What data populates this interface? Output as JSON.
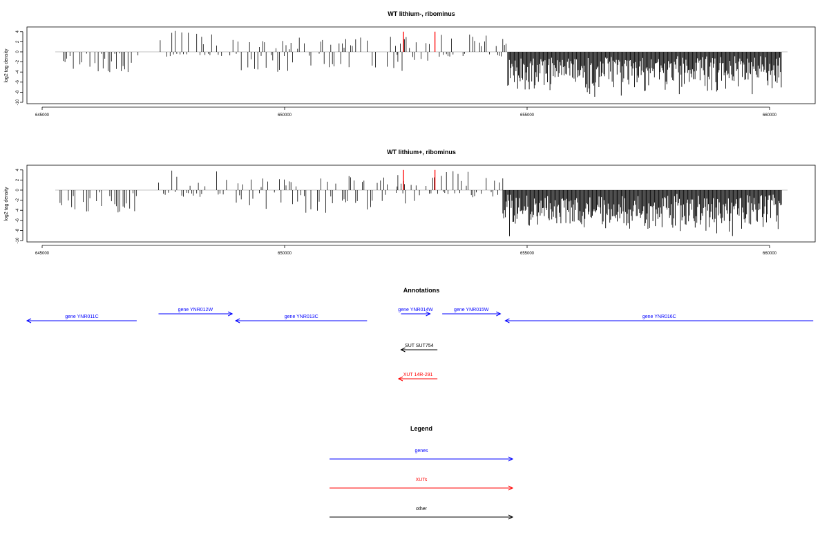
{
  "chart_data": [
    {
      "type": "bar",
      "title": "WT lithium-, ribominus",
      "ylabel": "log2 tag density",
      "xlabel": "",
      "xlim": [
        645000,
        660300
      ],
      "ylim": [
        -10,
        5
      ],
      "x_ticks": [
        "645000",
        "650000",
        "655000",
        "660000"
      ],
      "y_ticks": [
        "-10",
        "-8",
        "-6",
        "-4",
        "-2",
        "0",
        "2",
        "4"
      ],
      "grid": false,
      "series": [
        {
          "color": "#000000",
          "segments": [
            {
              "x": [
                645300,
                647000
              ],
              "min": -4,
              "max": 1
            },
            {
              "x": [
                647400,
                648900
              ],
              "min": -1,
              "max": 4.3
            },
            {
              "x": [
                648900,
                652500
              ],
              "min": -4,
              "max": 3
            },
            {
              "x": [
                652300,
                653200
              ],
              "min": -2,
              "max": 3
            },
            {
              "x": [
                653200,
                654600
              ],
              "min": -1,
              "max": 3.8
            },
            {
              "x": [
                654600,
                660250
              ],
              "min": -9,
              "max": 0
            }
          ]
        }
      ],
      "markers": [
        {
          "x": 652450,
          "color": "#ff0000"
        },
        {
          "x": 653100,
          "color": "#ff0000"
        }
      ]
    },
    {
      "type": "bar",
      "title": "WT lithium+, ribominus",
      "ylabel": "log2 tag density",
      "xlabel": "",
      "xlim": [
        645000,
        660300
      ],
      "ylim": [
        -10,
        5
      ],
      "x_ticks": [
        "645000",
        "650000",
        "655000",
        "660000"
      ],
      "y_ticks": [
        "-10",
        "-8",
        "-6",
        "-4",
        "-2",
        "0",
        "2",
        "4"
      ],
      "grid": false,
      "series": [
        {
          "color": "#000000",
          "segments": [
            {
              "x": [
                645300,
                647000
              ],
              "min": -4.5,
              "max": 2.2
            },
            {
              "x": [
                647400,
                648900
              ],
              "min": -1.5,
              "max": 4.5
            },
            {
              "x": [
                648900,
                652500
              ],
              "min": -4.5,
              "max": 3
            },
            {
              "x": [
                652300,
                653200
              ],
              "min": -2.2,
              "max": 3
            },
            {
              "x": [
                653200,
                654500
              ],
              "min": -1.5,
              "max": 4.2
            },
            {
              "x": [
                654500,
                660250
              ],
              "min": -9.5,
              "max": 0
            }
          ]
        }
      ],
      "markers": [
        {
          "x": 652450,
          "color": "#ff0000"
        },
        {
          "x": 653100,
          "color": "#ff0000"
        }
      ]
    }
  ],
  "annotations": {
    "title": "Annotations",
    "items": [
      {
        "label": "gene YNR011C",
        "color": "#0000ff",
        "start": 644600,
        "end": 646950,
        "strand": "-",
        "row": 1
      },
      {
        "label": "gene YNR012W",
        "color": "#0000ff",
        "start": 647400,
        "end": 648920,
        "strand": "+",
        "row": 0
      },
      {
        "label": "gene YNR013C",
        "color": "#0000ff",
        "start": 648990,
        "end": 651700,
        "strand": "-",
        "row": 1
      },
      {
        "label": "gene YNR014W",
        "color": "#0000ff",
        "start": 652400,
        "end": 653000,
        "strand": "+",
        "row": 0
      },
      {
        "label": "gene YNR015W",
        "color": "#0000ff",
        "start": 653250,
        "end": 654450,
        "strand": "+",
        "row": 0
      },
      {
        "label": "gene YNR016C",
        "color": "#0000ff",
        "start": 654550,
        "end": 660900,
        "strand": "-",
        "row": 1
      },
      {
        "label": "SUT SUT754",
        "color": "#000000",
        "start": 652400,
        "end": 653150,
        "strand": "-",
        "row": 2
      },
      {
        "label": "XUT 14R-291",
        "color": "#ff0000",
        "start": 652350,
        "end": 653150,
        "strand": "-",
        "row": 3
      }
    ]
  },
  "legend": {
    "title": "Legend",
    "items": [
      {
        "label": "genes",
        "color": "#0000ff"
      },
      {
        "label": "XUTs",
        "color": "#ff0000"
      },
      {
        "label": "other",
        "color": "#000000"
      }
    ]
  }
}
